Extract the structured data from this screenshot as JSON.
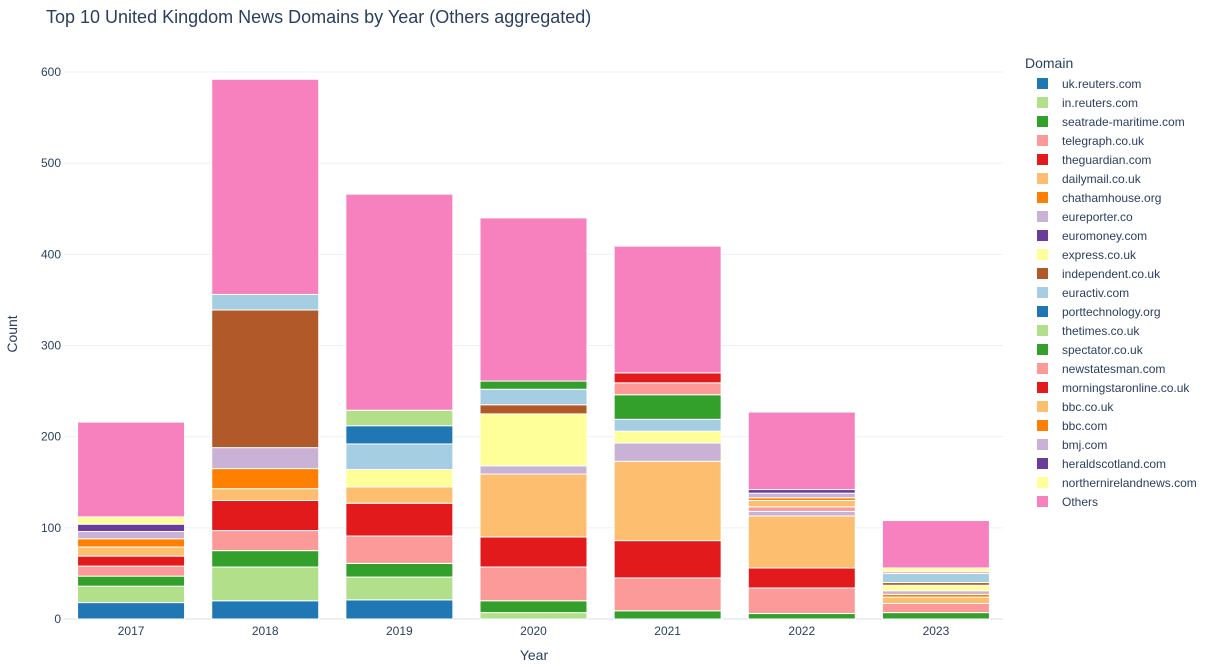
{
  "chart_data": {
    "type": "bar",
    "stacked": true,
    "title": "Top 10 United Kingdom News Domains by Year (Others aggregated)",
    "xlabel": "Year",
    "ylabel": "Count",
    "ylim": [
      0,
      600
    ],
    "yticks": [
      0,
      100,
      200,
      300,
      400,
      500,
      600
    ],
    "grid": true,
    "legend_title": "Domain",
    "legend_position": "right",
    "categories": [
      "2017",
      "2018",
      "2019",
      "2020",
      "2021",
      "2022",
      "2023"
    ],
    "series": [
      {
        "name": "uk.reuters.com",
        "color": "#1f78b4",
        "values": [
          18,
          20,
          21,
          0,
          0,
          0,
          0
        ]
      },
      {
        "name": "in.reuters.com",
        "color": "#b2df8a",
        "values": [
          18,
          37,
          25,
          7,
          0,
          0,
          0
        ]
      },
      {
        "name": "seatrade-maritime.com",
        "color": "#33a02c",
        "values": [
          11,
          18,
          15,
          13,
          9,
          6,
          7
        ]
      },
      {
        "name": "telegraph.co.uk",
        "color": "#fb9a99",
        "values": [
          11,
          22,
          30,
          37,
          36,
          28,
          10
        ]
      },
      {
        "name": "theguardian.com",
        "color": "#e31a1c",
        "values": [
          11,
          33,
          36,
          33,
          41,
          22,
          0
        ]
      },
      {
        "name": "dailymail.co.uk",
        "color": "#fdbf6f",
        "values": [
          10,
          13,
          18,
          69,
          87,
          57,
          7
        ]
      },
      {
        "name": "chathamhouse.org",
        "color": "#ff7f00",
        "values": [
          9,
          22,
          0,
          0,
          0,
          0,
          3
        ]
      },
      {
        "name": "eureporter.co",
        "color": "#cab2d6",
        "values": [
          8,
          23,
          0,
          9,
          20,
          5,
          4
        ]
      },
      {
        "name": "euromoney.com",
        "color": "#6a3d9a",
        "values": [
          8,
          0,
          0,
          0,
          0,
          0,
          0
        ]
      },
      {
        "name": "express.co.uk",
        "color": "#ffff99",
        "values": [
          8,
          0,
          19,
          57,
          13,
          0,
          6
        ]
      },
      {
        "name": "independent.co.uk",
        "color": "#b15928",
        "values": [
          0,
          151,
          0,
          10,
          0,
          0,
          3
        ]
      },
      {
        "name": "euractiv.com",
        "color": "#a6cee3",
        "values": [
          0,
          17,
          28,
          17,
          13,
          0,
          10
        ]
      },
      {
        "name": "porttechnology.org",
        "color": "#1f78b4",
        "values": [
          0,
          0,
          20,
          0,
          0,
          0,
          0
        ]
      },
      {
        "name": "thetimes.co.uk",
        "color": "#b2df8a",
        "values": [
          0,
          0,
          17,
          0,
          0,
          0,
          0
        ]
      },
      {
        "name": "spectator.co.uk",
        "color": "#33a02c",
        "values": [
          0,
          0,
          0,
          9,
          27,
          0,
          0
        ]
      },
      {
        "name": "newstatesman.com",
        "color": "#fb9a99",
        "values": [
          0,
          0,
          0,
          0,
          13,
          5,
          2
        ]
      },
      {
        "name": "morningstaronline.co.uk",
        "color": "#e31a1c",
        "values": [
          0,
          0,
          0,
          0,
          11,
          0,
          0
        ]
      },
      {
        "name": "bbc.co.uk",
        "color": "#fdbf6f",
        "values": [
          0,
          0,
          0,
          0,
          0,
          7,
          0
        ]
      },
      {
        "name": "bbc.com",
        "color": "#ff7f00",
        "values": [
          0,
          0,
          0,
          0,
          0,
          3,
          0
        ]
      },
      {
        "name": "bmj.com",
        "color": "#cab2d6",
        "values": [
          0,
          0,
          0,
          0,
          0,
          5,
          0
        ]
      },
      {
        "name": "heraldscotland.com",
        "color": "#6a3d9a",
        "values": [
          0,
          0,
          0,
          0,
          0,
          4,
          0
        ]
      },
      {
        "name": "northernirelandnews.com",
        "color": "#ffff99",
        "values": [
          0,
          0,
          0,
          0,
          0,
          0,
          4
        ]
      },
      {
        "name": "Others",
        "color": "#f781bf",
        "values": [
          104,
          236,
          237,
          179,
          139,
          85,
          52
        ]
      }
    ]
  }
}
